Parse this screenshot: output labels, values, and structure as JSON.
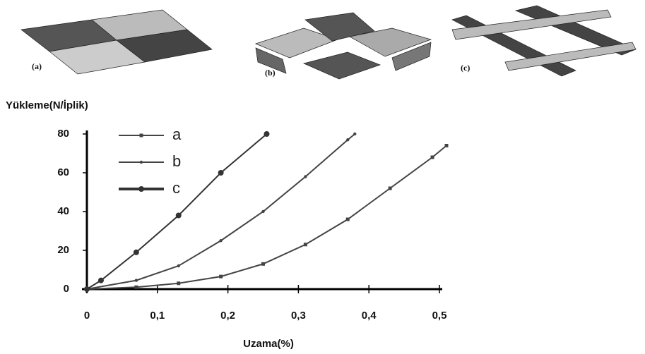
{
  "images": [
    {
      "label": "(a)"
    },
    {
      "label": "(b)"
    },
    {
      "label": "(c)"
    }
  ],
  "chart_data": {
    "type": "line",
    "ylabel": "Yükleme(N/İplik)",
    "xlabel": "Uzama(%)",
    "xlim": [
      0,
      0.5
    ],
    "ylim": [
      0,
      80
    ],
    "xticks": [
      0,
      {
        "value": 0.1,
        "label": "0,1"
      },
      {
        "value": 0.2,
        "label": "0,2"
      },
      {
        "value": 0.3,
        "label": "0,3"
      },
      {
        "value": 0.4,
        "label": "0,4"
      },
      {
        "value": 0.5,
        "label": "0,5"
      }
    ],
    "yticks": [
      0,
      20,
      40,
      60,
      80
    ],
    "legend": "top-left",
    "series": [
      {
        "name": "a",
        "color": "#444444",
        "marker": "square",
        "x": [
          0,
          0.07,
          0.13,
          0.19,
          0.25,
          0.31,
          0.37,
          0.43,
          0.49,
          0.51
        ],
        "values": [
          0,
          1,
          3,
          6.5,
          13,
          23,
          36,
          52,
          68,
          74
        ]
      },
      {
        "name": "b",
        "color": "#444444",
        "marker": "dot",
        "x": [
          0,
          0.07,
          0.13,
          0.19,
          0.25,
          0.31,
          0.37,
          0.38
        ],
        "values": [
          0,
          4.5,
          12,
          25,
          40,
          58,
          77,
          80
        ]
      },
      {
        "name": "c",
        "color": "#333333",
        "marker": "circle",
        "x": [
          0,
          0.02,
          0.07,
          0.13,
          0.19,
          0.255
        ],
        "values": [
          0,
          4.5,
          19,
          38,
          60,
          80
        ]
      }
    ]
  }
}
